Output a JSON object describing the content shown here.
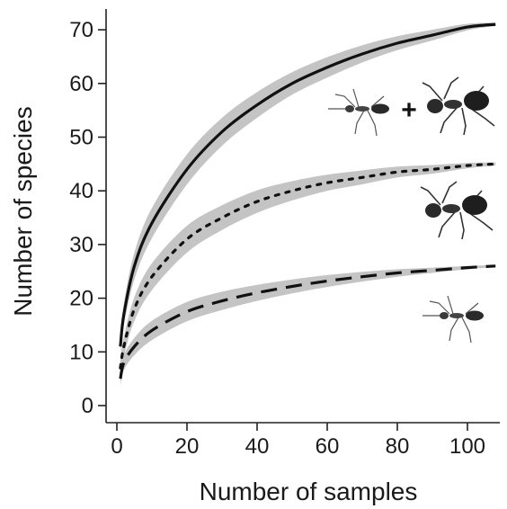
{
  "chart_data": {
    "type": "line",
    "title": "",
    "xlabel": "Number of samples",
    "ylabel": "Number of species",
    "xlim": [
      0,
      108
    ],
    "ylim": [
      0,
      72
    ],
    "xticks": [
      0,
      20,
      40,
      60,
      80,
      100
    ],
    "yticks": [
      0,
      10,
      20,
      30,
      40,
      50,
      60,
      70
    ],
    "grid": false,
    "legend": "icons at right end of each curve (ant silhouettes)",
    "series": [
      {
        "style": "solid",
        "icon": "ant-pair-icon",
        "x": [
          1,
          2,
          5,
          10,
          20,
          30,
          40,
          50,
          60,
          70,
          80,
          90,
          100,
          108
        ],
        "y": [
          11,
          17,
          26,
          34,
          44,
          51,
          56,
          60,
          63,
          65.5,
          67.5,
          69,
          70.5,
          71
        ],
        "ci_half": [
          1.5,
          2,
          2.5,
          2.8,
          2.8,
          2.6,
          2.4,
          2.1,
          1.9,
          1.6,
          1.3,
          1.0,
          0.6,
          0.3
        ]
      },
      {
        "style": "dotted",
        "icon": "large-ant-icon",
        "x": [
          1,
          2,
          5,
          10,
          20,
          30,
          40,
          50,
          60,
          70,
          80,
          90,
          100,
          108
        ],
        "y": [
          7,
          11,
          18,
          24,
          31,
          35,
          38,
          40,
          41.5,
          42.5,
          43.5,
          44,
          44.7,
          45
        ],
        "ci_half": [
          1.5,
          1.8,
          2.2,
          2.5,
          2.5,
          2.3,
          2.1,
          1.8,
          1.5,
          1.3,
          1.0,
          0.8,
          0.5,
          0.3
        ]
      },
      {
        "style": "dashed",
        "icon": "small-ant-icon",
        "x": [
          1,
          2,
          5,
          10,
          20,
          30,
          40,
          50,
          60,
          70,
          80,
          90,
          100,
          108
        ],
        "y": [
          5,
          8,
          11,
          14,
          17.5,
          19.5,
          21,
          22.2,
          23.2,
          24,
          24.7,
          25.2,
          25.7,
          26
        ],
        "ci_half": [
          1.2,
          1.4,
          1.6,
          1.8,
          1.8,
          1.7,
          1.5,
          1.3,
          1.1,
          0.9,
          0.7,
          0.5,
          0.3,
          0.2
        ]
      }
    ]
  },
  "plus_sign": "+",
  "colors": {
    "ci_band": "#c4c4c4",
    "line": "#111111",
    "axis": "#222222",
    "ant_body": "#2a2a2a",
    "ant_light": "#4a4a4a"
  }
}
